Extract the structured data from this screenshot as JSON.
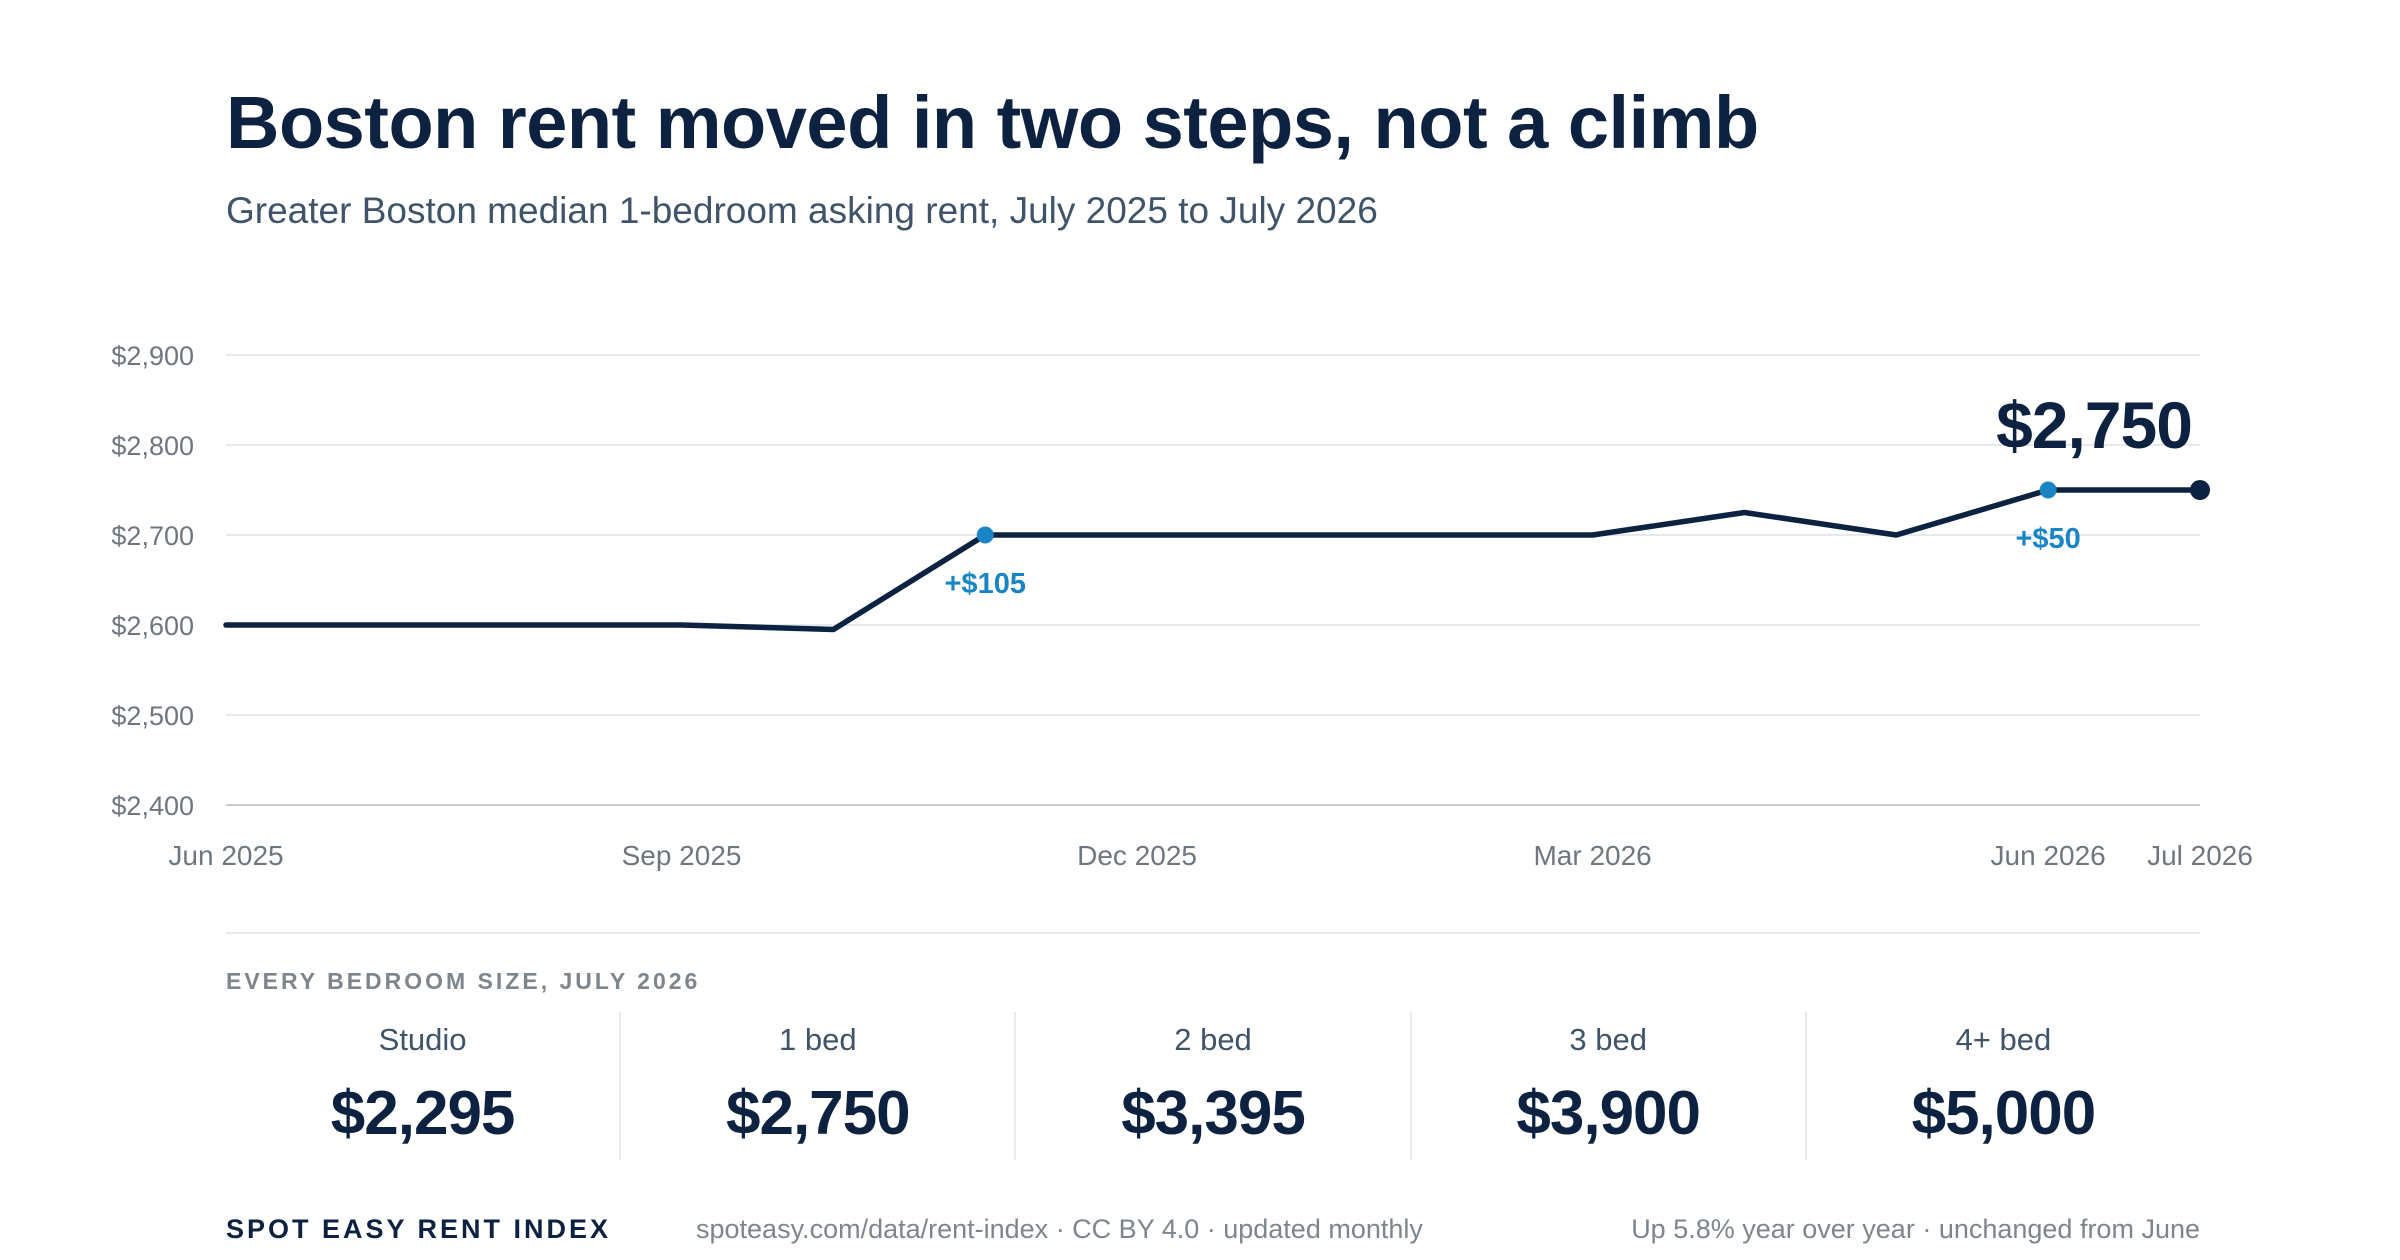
{
  "header": {
    "title": "Boston rent moved in two steps, not a climb",
    "subtitle": "Greater Boston median 1-bedroom asking rent, July 2025 to July 2026"
  },
  "chart_data": {
    "type": "line",
    "title": "Boston rent moved in two steps, not a climb",
    "subtitle": "Greater Boston median 1-bedroom asking rent, July 2025 to July 2026",
    "xlabel": "",
    "ylabel": "",
    "x_range": [
      "Jun 2025",
      "Jul 2026"
    ],
    "ylim": [
      2400,
      2900
    ],
    "y_ticks": [
      2400,
      2500,
      2600,
      2700,
      2800,
      2900
    ],
    "y_tick_labels": [
      "$2,400",
      "$2,500",
      "$2,600",
      "$2,700",
      "$2,800",
      "$2,900"
    ],
    "x_ticks": [
      {
        "x": "Jun 2025",
        "label": "Jun 2025"
      },
      {
        "x": "Sep 2025",
        "label": "Sep 2025"
      },
      {
        "x": "Dec 2025",
        "label": "Dec 2025"
      },
      {
        "x": "Mar 2026",
        "label": "Mar 2026"
      },
      {
        "x": "Jun 2026",
        "label": "Jun 2026"
      },
      {
        "x": "Jul 2026",
        "label": "Jul 2026"
      }
    ],
    "grid": true,
    "x": [
      "Jun 2025",
      "Jul 2025",
      "Aug 2025",
      "Sep 2025",
      "Oct 2025",
      "Nov 2025",
      "Dec 2025",
      "Jan 2026",
      "Feb 2026",
      "Mar 2026",
      "Apr 2026",
      "May 2026",
      "Jun 2026",
      "Jul 2026"
    ],
    "series": [
      {
        "values": [
          2600,
          2600,
          2600,
          2600,
          2595,
          2700,
          2700,
          2700,
          2700,
          2700,
          2725,
          2700,
          2750,
          2750
        ],
        "color": "#0d2240"
      }
    ],
    "annotations": [
      {
        "x": "Nov 2025",
        "y": 2700,
        "text": "+$105",
        "color": "#1a85c4",
        "position": "below"
      },
      {
        "x": "Jun 2026",
        "y": 2750,
        "text": "+$50",
        "color": "#1a85c4",
        "position": "below"
      },
      {
        "x": "Jul 2026",
        "y": 2750,
        "text": "$2,750",
        "color": "#0d2240",
        "position": "above"
      }
    ]
  },
  "bedrooms": {
    "section_label": "EVERY BEDROOM SIZE, JULY 2026",
    "items": [
      {
        "label": "Studio",
        "value": "$2,295"
      },
      {
        "label": "1 bed",
        "value": "$2,750"
      },
      {
        "label": "2 bed",
        "value": "$3,395"
      },
      {
        "label": "3 bed",
        "value": "$3,900"
      },
      {
        "label": "4+ bed",
        "value": "$5,000"
      }
    ]
  },
  "footer": {
    "brand": "SPOT EASY RENT INDEX",
    "source": "spoteasy.com/data/rent-index · CC BY 4.0 · updated monthly",
    "note": "Up 5.8% year over year · unchanged from June"
  },
  "colors": {
    "line": "#0d2240",
    "accent": "#1a85c4",
    "grid": "#e5e8ec"
  }
}
